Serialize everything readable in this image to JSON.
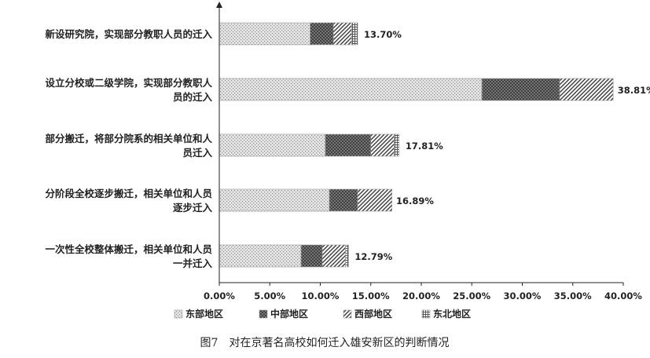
{
  "chart_data": {
    "type": "bar",
    "orientation": "horizontal",
    "stacked": true,
    "caption": "图7　对在京著名高校如何迁入雄安新区的判断情况",
    "xlim": [
      0,
      40
    ],
    "x_ticks": [
      "0.00%",
      "5.00%",
      "10.00%",
      "15.00%",
      "20.00%",
      "25.00%",
      "30.00%",
      "35.00%",
      "40.00%"
    ],
    "grid": false,
    "legend_position": "bottom",
    "categories": [
      [
        "新设研究院，实现部分教职人员的迁入"
      ],
      [
        "设立分校或二级学院，实现部分教职人",
        "员的迁入"
      ],
      [
        "部分搬迁，将部分院系的相关单位和人",
        "员迁入"
      ],
      [
        "分阶段全校逐步搬迁，相关单位和人员",
        "逐步迁入"
      ],
      [
        "一次性全校整体搬迁，相关单位和人员",
        "一并迁入"
      ]
    ],
    "totals": [
      13.7,
      38.81,
      17.81,
      16.89,
      12.79
    ],
    "total_labels": [
      "13.70%",
      "38.81%",
      "17.81%",
      "16.89%",
      "12.79%"
    ],
    "series": [
      {
        "name": "东部地区",
        "pattern": "dots",
        "values": [
          9.0,
          26.0,
          10.5,
          10.9,
          8.1
        ]
      },
      {
        "name": "中部地区",
        "pattern": "cross",
        "values": [
          2.3,
          7.7,
          4.5,
          2.8,
          2.1
        ]
      },
      {
        "name": "西部地区",
        "pattern": "diag",
        "values": [
          1.8,
          5.3,
          2.3,
          3.4,
          2.3
        ]
      },
      {
        "name": "东北地区",
        "pattern": "grid",
        "values": [
          0.6,
          0.0,
          0.5,
          0.0,
          0.3
        ]
      }
    ]
  }
}
